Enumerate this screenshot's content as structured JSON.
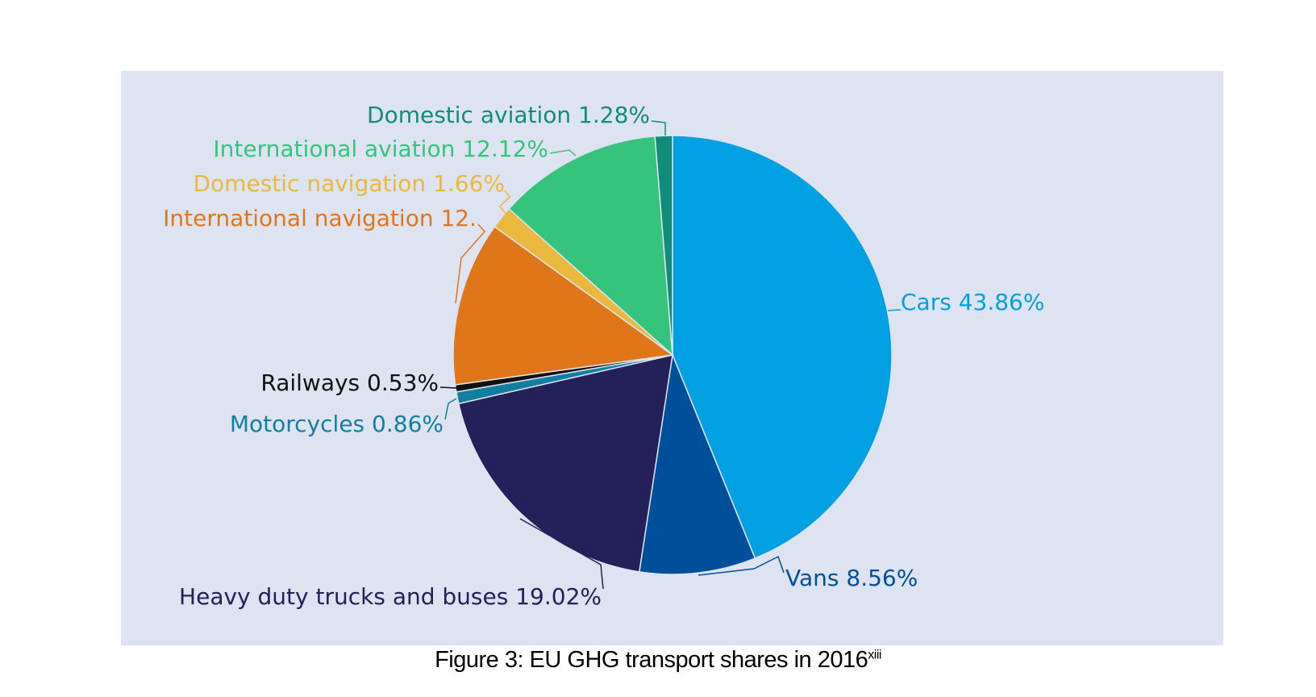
{
  "chart_data": {
    "type": "pie",
    "title": "",
    "start": "top",
    "direction": "clockwise",
    "slices": [
      {
        "label": "Cars 43.86%",
        "name": "Cars",
        "value": 43.86,
        "color": "#00a0e3"
      },
      {
        "label": "Vans 8.56%",
        "name": "Vans",
        "value": 8.56,
        "color": "#004f9a"
      },
      {
        "label": "Heavy duty trucks and buses 19.02%",
        "name": "Heavy duty trucks and buses",
        "value": 19.02,
        "color": "#23205a"
      },
      {
        "label": "Motorcycles 0.86%",
        "name": "Motorcycles",
        "value": 0.86,
        "color": "#127fa0"
      },
      {
        "label": "Railways 0.53%",
        "name": "Railways",
        "value": 0.53,
        "color": "#111111"
      },
      {
        "label": "International navigation 12.",
        "name": "International navigation",
        "value": 12.11,
        "color": "#df7619"
      },
      {
        "label": "Domestic navigation 1.66%",
        "name": "Domestic navigation",
        "value": 1.66,
        "color": "#eab83d"
      },
      {
        "label": "International aviation 12.12%",
        "name": "International aviation",
        "value": 12.12,
        "color": "#36c47d"
      },
      {
        "label": "Domestic aviation 1.28%",
        "name": "Domestic aviation",
        "value": 1.28,
        "color": "#118c7a"
      }
    ],
    "background": "#dee3f2"
  },
  "caption": {
    "text": "Figure 3: EU GHG transport shares in 2016",
    "superscript": "xiii"
  }
}
